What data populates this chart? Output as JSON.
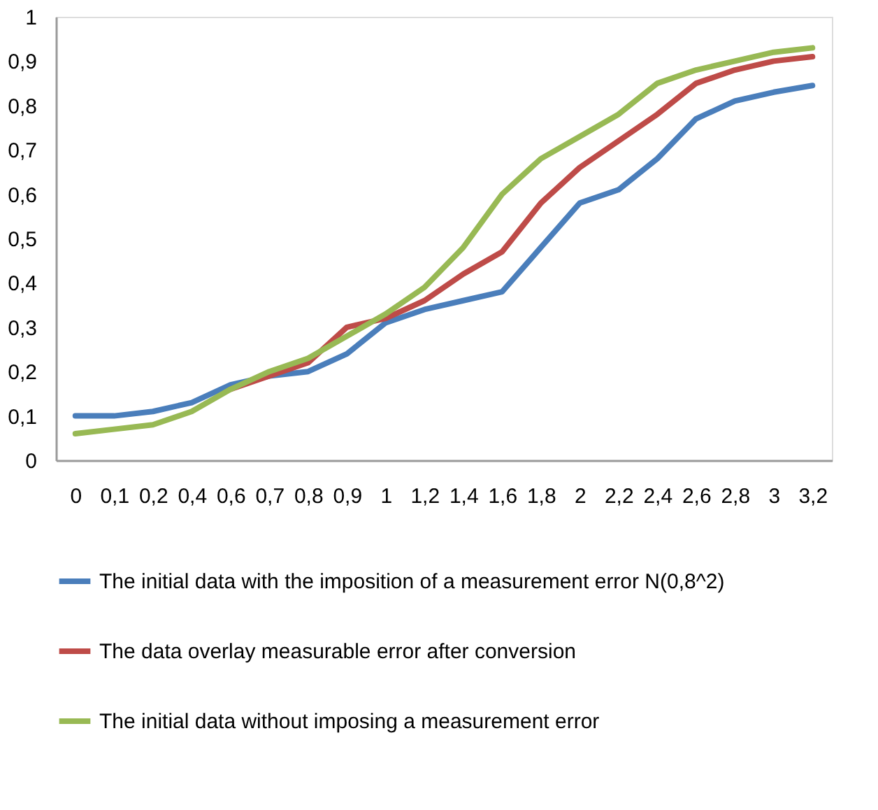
{
  "chart_data": {
    "type": "line",
    "categories": [
      "0",
      "0,1",
      "0,2",
      "0,4",
      "0,6",
      "0,7",
      "0,8",
      "0,9",
      "1",
      "1,2",
      "1,4",
      "1,6",
      "1,8",
      "2",
      "2,2",
      "2,4",
      "2,6",
      "2,8",
      "3",
      "3,2"
    ],
    "series": [
      {
        "name": "The initial data with the imposition of a measurement error  N(0,8^2)",
        "color": "#4a7ebb",
        "values": [
          0.1,
          0.1,
          0.11,
          0.13,
          0.17,
          0.19,
          0.2,
          0.24,
          0.31,
          0.34,
          0.36,
          0.38,
          0.48,
          0.58,
          0.61,
          0.68,
          0.77,
          0.81,
          0.83,
          0.845
        ]
      },
      {
        "name": "The data overlay measurable error after conversion",
        "color": "#be4b48",
        "values": [
          null,
          null,
          null,
          null,
          0.16,
          0.19,
          0.22,
          0.3,
          0.32,
          0.36,
          0.42,
          0.47,
          0.58,
          0.66,
          0.72,
          0.78,
          0.85,
          0.88,
          0.9,
          0.91
        ]
      },
      {
        "name": "The initial data without imposing a measurement error",
        "color": "#98b954",
        "values": [
          0.06,
          0.07,
          0.08,
          0.11,
          0.16,
          0.2,
          0.23,
          0.28,
          0.33,
          0.39,
          0.48,
          0.6,
          0.68,
          0.73,
          0.78,
          0.85,
          0.88,
          0.9,
          0.92,
          0.93
        ]
      }
    ],
    "ylim": [
      0,
      1
    ],
    "yticks": [
      0,
      {
        "value": 0.1,
        "label": "0,1"
      },
      {
        "value": 0.2,
        "label": "0,2"
      },
      {
        "value": 0.3,
        "label": "0,3"
      },
      {
        "value": 0.4,
        "label": "0,4"
      },
      {
        "value": 0.5,
        "label": "0,5"
      },
      {
        "value": 0.6,
        "label": "0,6"
      },
      {
        "value": 0.7,
        "label": "0,7"
      },
      {
        "value": 0.8,
        "label": "0,8"
      },
      {
        "value": 0.9,
        "label": "0,9"
      },
      1
    ],
    "grid": false,
    "legend": "bottom",
    "line_style": "solid",
    "marker": "none"
  }
}
